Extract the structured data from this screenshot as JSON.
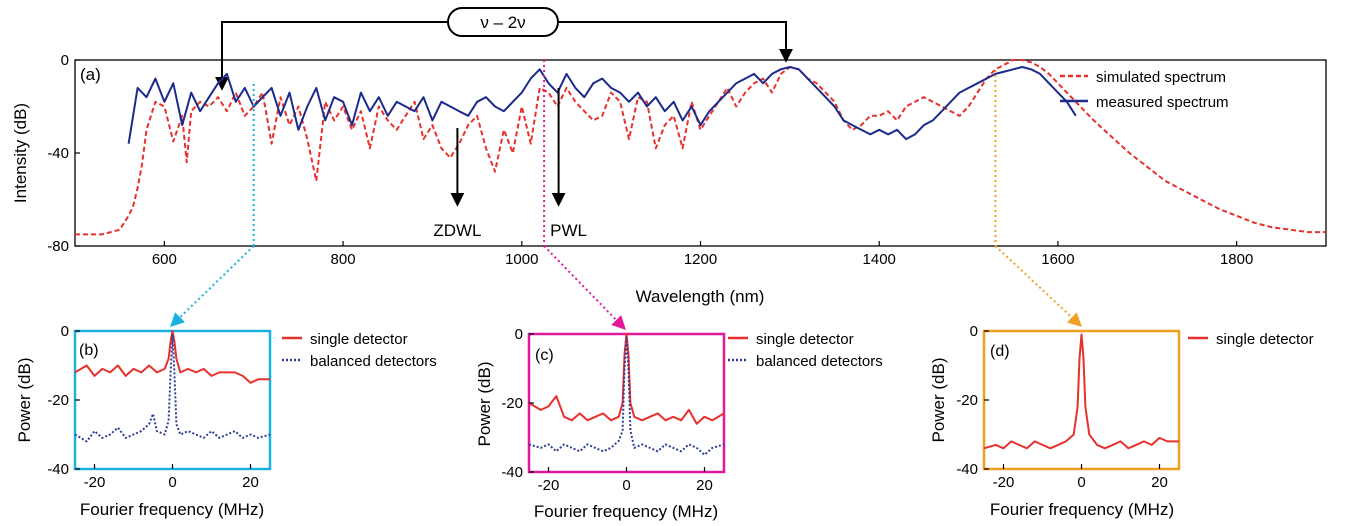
{
  "figure": {
    "ratio_label": "ν – 2ν",
    "annotations": [
      {
        "text": "ZDWL",
        "x": 928
      },
      {
        "text": "PWL",
        "x": 1030
      }
    ]
  },
  "colors": {
    "simulated": "#e8312c",
    "measured": "#1c2a8c",
    "single": "#e8312c",
    "balanced": "#2b3e9b",
    "marker_b": "#1ab2e0",
    "marker_c": "#e0189a",
    "marker_d": "#f0a020"
  },
  "chart_data": [
    {
      "type": "line",
      "panel_label": "(a)",
      "xlabel": "Wavelength (nm)",
      "ylabel": "Intensity (dB)",
      "xlim": [
        500,
        1900
      ],
      "ylim": [
        -80,
        0
      ],
      "xticks": [
        600,
        800,
        1000,
        1200,
        1400,
        1600,
        1800
      ],
      "yticks": [
        0,
        -40,
        -80
      ],
      "legend_position": "top-right",
      "markers": [
        {
          "x": 700,
          "color": "marker_b"
        },
        {
          "x": 1025,
          "color": "marker_c"
        },
        {
          "x": 1530,
          "color": "marker_d"
        }
      ],
      "series": [
        {
          "name": "simulated spectrum",
          "style": "dashed",
          "x": [
            500,
            510,
            520,
            530,
            540,
            550,
            555,
            560,
            565,
            570,
            575,
            580,
            590,
            600,
            610,
            620,
            625,
            630,
            640,
            650,
            660,
            670,
            680,
            690,
            700,
            710,
            720,
            730,
            740,
            750,
            760,
            770,
            780,
            790,
            800,
            810,
            820,
            830,
            840,
            850,
            860,
            870,
            880,
            890,
            900,
            910,
            920,
            930,
            940,
            950,
            960,
            970,
            980,
            990,
            1000,
            1010,
            1020,
            1030,
            1040,
            1050,
            1060,
            1070,
            1080,
            1090,
            1100,
            1110,
            1120,
            1130,
            1140,
            1150,
            1160,
            1170,
            1180,
            1190,
            1200,
            1210,
            1220,
            1230,
            1240,
            1250,
            1260,
            1270,
            1280,
            1290,
            1300,
            1310,
            1320,
            1330,
            1340,
            1350,
            1360,
            1370,
            1380,
            1390,
            1400,
            1410,
            1420,
            1430,
            1440,
            1450,
            1460,
            1470,
            1480,
            1490,
            1500,
            1510,
            1520,
            1530,
            1540,
            1550,
            1560,
            1570,
            1580,
            1590,
            1600,
            1620,
            1640,
            1660,
            1680,
            1700,
            1720,
            1740,
            1760,
            1780,
            1800,
            1820,
            1840,
            1860,
            1880,
            1900
          ],
          "y": [
            -75,
            -75,
            -75,
            -75,
            -74,
            -73,
            -70,
            -67,
            -63,
            -55,
            -45,
            -30,
            -18,
            -20,
            -35,
            -24,
            -44,
            -22,
            -18,
            -20,
            -16,
            -22,
            -14,
            -24,
            -20,
            -14,
            -36,
            -16,
            -28,
            -20,
            -34,
            -52,
            -18,
            -26,
            -20,
            -30,
            -22,
            -38,
            -20,
            -26,
            -30,
            -24,
            -18,
            -34,
            -28,
            -38,
            -42,
            -36,
            -28,
            -24,
            -38,
            -48,
            -30,
            -40,
            -20,
            -36,
            -12,
            -14,
            -20,
            -12,
            -18,
            -22,
            -26,
            -24,
            -14,
            -18,
            -34,
            -16,
            -18,
            -38,
            -28,
            -24,
            -38,
            -18,
            -30,
            -24,
            -18,
            -12,
            -20,
            -14,
            -10,
            -8,
            -14,
            -6,
            -3,
            -4,
            -8,
            -10,
            -14,
            -18,
            -26,
            -30,
            -28,
            -24,
            -24,
            -22,
            -26,
            -20,
            -18,
            -16,
            -18,
            -20,
            -22,
            -24,
            -20,
            -14,
            -8,
            -4,
            -2,
            0,
            0,
            -1,
            -3,
            -6,
            -10,
            -18,
            -26,
            -33,
            -40,
            -46,
            -52,
            -56,
            -60,
            -64,
            -67,
            -70,
            -72,
            -73,
            -74,
            -74
          ]
        },
        {
          "name": "measured spectrum",
          "style": "solid",
          "x": [
            560,
            570,
            580,
            590,
            600,
            610,
            620,
            630,
            640,
            650,
            660,
            670,
            680,
            690,
            700,
            710,
            720,
            730,
            740,
            750,
            760,
            770,
            780,
            790,
            800,
            810,
            820,
            830,
            840,
            850,
            860,
            870,
            880,
            890,
            900,
            910,
            920,
            930,
            940,
            950,
            960,
            970,
            980,
            990,
            1000,
            1010,
            1020,
            1030,
            1040,
            1050,
            1060,
            1070,
            1080,
            1090,
            1100,
            1110,
            1120,
            1130,
            1140,
            1150,
            1160,
            1170,
            1180,
            1190,
            1200,
            1210,
            1220,
            1230,
            1240,
            1250,
            1260,
            1270,
            1280,
            1290,
            1300,
            1310,
            1320,
            1330,
            1340,
            1350,
            1360,
            1370,
            1380,
            1390,
            1400,
            1410,
            1420,
            1430,
            1440,
            1450,
            1460,
            1470,
            1480,
            1490,
            1500,
            1510,
            1520,
            1530,
            1540,
            1550,
            1560,
            1570,
            1580,
            1590,
            1600,
            1610,
            1620
          ],
          "y": [
            -36,
            -12,
            -16,
            -8,
            -18,
            -10,
            -28,
            -14,
            -22,
            -16,
            -10,
            -6,
            -18,
            -12,
            -20,
            -16,
            -12,
            -24,
            -14,
            -30,
            -20,
            -12,
            -26,
            -16,
            -18,
            -28,
            -14,
            -22,
            -16,
            -24,
            -18,
            -20,
            -22,
            -16,
            -26,
            -18,
            -20,
            -22,
            -24,
            -18,
            -16,
            -20,
            -22,
            -18,
            -14,
            -8,
            -4,
            -10,
            -14,
            -6,
            -12,
            -16,
            -10,
            -8,
            -12,
            -14,
            -18,
            -14,
            -20,
            -16,
            -22,
            -18,
            -26,
            -20,
            -28,
            -22,
            -18,
            -14,
            -10,
            -8,
            -6,
            -10,
            -6,
            -4,
            -3,
            -4,
            -8,
            -12,
            -16,
            -20,
            -26,
            -28,
            -30,
            -32,
            -30,
            -32,
            -30,
            -34,
            -32,
            -28,
            -26,
            -22,
            -18,
            -14,
            -12,
            -10,
            -8,
            -6,
            -5,
            -4,
            -3,
            -4,
            -6,
            -10,
            -14,
            -18,
            -24
          ]
        }
      ]
    },
    {
      "type": "line",
      "panel_label": "(b)",
      "xlabel": "Fourier frequency (MHz)",
      "ylabel": "Power (dB)",
      "xlim": [
        -25,
        25
      ],
      "ylim": [
        -40,
        0
      ],
      "xticks": [
        -20,
        0,
        20
      ],
      "yticks": [
        0,
        -20,
        -40
      ],
      "legend_position": "right",
      "series": [
        {
          "name": "single detector",
          "style": "solid",
          "color": "single",
          "x": [
            -25,
            -22,
            -20,
            -18,
            -16,
            -14,
            -12,
            -10,
            -8,
            -6,
            -4,
            -2,
            -1,
            -0.5,
            0,
            0.5,
            1,
            2,
            4,
            6,
            8,
            10,
            12,
            14,
            16,
            18,
            20,
            22,
            25
          ],
          "y": [
            -12,
            -10,
            -13,
            -11,
            -12,
            -10,
            -13,
            -11,
            -12,
            -10,
            -12,
            -11,
            -8,
            -3,
            0,
            -3,
            -8,
            -12,
            -11,
            -12,
            -11,
            -13,
            -12,
            -12,
            -12,
            -13,
            -15,
            -14,
            -14
          ]
        },
        {
          "name": "balanced detectors",
          "style": "dotted",
          "color": "balanced",
          "x": [
            -25,
            -22,
            -20,
            -18,
            -16,
            -14,
            -12,
            -10,
            -8,
            -6,
            -5,
            -4,
            -2,
            -1,
            -0.5,
            0,
            0.5,
            1,
            2,
            4,
            6,
            8,
            10,
            12,
            14,
            16,
            18,
            20,
            22,
            25
          ],
          "y": [
            -30,
            -32,
            -29,
            -31,
            -30,
            -28,
            -31,
            -30,
            -29,
            -27,
            -24,
            -29,
            -30,
            -26,
            -12,
            -1,
            -12,
            -27,
            -30,
            -29,
            -30,
            -31,
            -29,
            -31,
            -30,
            -29,
            -31,
            -30,
            -31,
            -30
          ]
        }
      ]
    },
    {
      "type": "line",
      "panel_label": "(c)",
      "xlabel": "Fourier frequency (MHz)",
      "ylabel": "Power (dB)",
      "xlim": [
        -25,
        25
      ],
      "ylim": [
        -40,
        0
      ],
      "xticks": [
        -20,
        0,
        20
      ],
      "yticks": [
        0,
        -20,
        -40
      ],
      "legend_position": "right",
      "series": [
        {
          "name": "single detector",
          "style": "solid",
          "color": "single",
          "x": [
            -25,
            -22,
            -20,
            -18,
            -16,
            -14,
            -12,
            -10,
            -8,
            -6,
            -4,
            -2,
            -1,
            -0.5,
            0,
            0.5,
            1,
            2,
            4,
            6,
            8,
            10,
            12,
            14,
            16,
            18,
            20,
            22,
            25
          ],
          "y": [
            -20,
            -22,
            -21,
            -18,
            -24,
            -25,
            -23,
            -25,
            -24,
            -23,
            -25,
            -24,
            -20,
            -6,
            0,
            -6,
            -20,
            -24,
            -25,
            -24,
            -23,
            -25,
            -24,
            -25,
            -22,
            -26,
            -24,
            -25,
            -23
          ]
        },
        {
          "name": "balanced detectors",
          "style": "dotted",
          "color": "balanced",
          "x": [
            -25,
            -22,
            -20,
            -18,
            -16,
            -14,
            -12,
            -10,
            -8,
            -6,
            -4,
            -2,
            -1,
            -0.5,
            0,
            0.5,
            1,
            2,
            4,
            6,
            8,
            10,
            12,
            14,
            16,
            18,
            20,
            22,
            25
          ],
          "y": [
            -32,
            -33,
            -32,
            -34,
            -32,
            -33,
            -34,
            -32,
            -33,
            -34,
            -33,
            -31,
            -28,
            -10,
            -1,
            -10,
            -28,
            -33,
            -32,
            -33,
            -34,
            -32,
            -33,
            -34,
            -32,
            -33,
            -35,
            -33,
            -32
          ]
        }
      ]
    },
    {
      "type": "line",
      "panel_label": "(d)",
      "xlabel": "Fourier frequency (MHz)",
      "ylabel": "Power (dB)",
      "xlim": [
        -25,
        25
      ],
      "ylim": [
        -40,
        0
      ],
      "xticks": [
        -20,
        0,
        20
      ],
      "yticks": [
        0,
        -20,
        -40
      ],
      "legend_position": "right",
      "series": [
        {
          "name": "single detector",
          "style": "solid",
          "color": "single",
          "x": [
            -25,
            -22,
            -20,
            -18,
            -16,
            -14,
            -12,
            -10,
            -8,
            -6,
            -4,
            -2,
            -1,
            -0.5,
            0,
            0.5,
            1,
            2,
            4,
            6,
            8,
            10,
            12,
            14,
            16,
            18,
            20,
            22,
            25
          ],
          "y": [
            -34,
            -33,
            -34,
            -32,
            -33,
            -34,
            -32,
            -33,
            -34,
            -33,
            -32,
            -30,
            -22,
            -8,
            -1,
            -8,
            -22,
            -30,
            -33,
            -34,
            -33,
            -32,
            -34,
            -33,
            -32,
            -33,
            -31,
            -32,
            -32
          ]
        }
      ]
    }
  ]
}
